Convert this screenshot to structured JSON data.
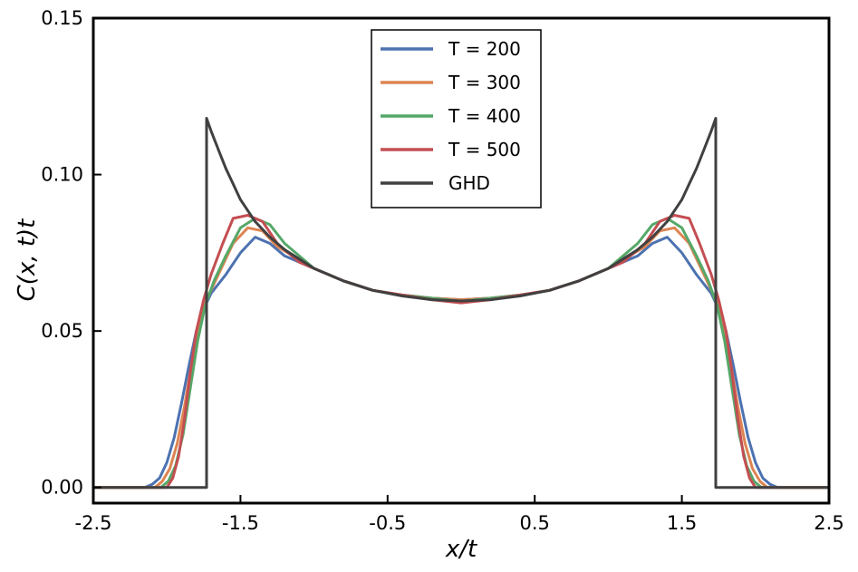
{
  "chart_data": {
    "type": "line",
    "title": "",
    "xlabel": "x/t",
    "ylabel": "C(x, t)t",
    "xlim": [
      -2.5,
      2.5
    ],
    "ylim": [
      -0.005,
      0.15
    ],
    "x_ticks": [
      -2.5,
      -1.5,
      -0.5,
      0.5,
      1.5,
      2.5
    ],
    "x_tick_labels": [
      "-2.5",
      "-1.5",
      "-0.5",
      "0.5",
      "1.5",
      "2.5"
    ],
    "y_ticks": [
      0.0,
      0.05,
      0.1,
      0.15
    ],
    "y_tick_labels": [
      "0.00",
      "0.05",
      "0.10",
      "0.15"
    ],
    "grid": false,
    "legend_position": "top-center",
    "series": [
      {
        "name": "T = 200",
        "color": "#4c72b0",
        "x": [
          -2.5,
          -2.15,
          -2.1,
          -2.05,
          -2.0,
          -1.95,
          -1.9,
          -1.85,
          -1.8,
          -1.75,
          -1.7,
          -1.6,
          -1.5,
          -1.4,
          -1.3,
          -1.2,
          -1.0,
          -0.8,
          -0.6,
          -0.4,
          -0.2,
          0.0,
          0.2,
          0.4,
          0.6,
          0.8,
          1.0,
          1.2,
          1.3,
          1.4,
          1.5,
          1.6,
          1.7,
          1.75,
          1.8,
          1.85,
          1.9,
          1.95,
          2.0,
          2.05,
          2.1,
          2.15,
          2.5
        ],
        "y": [
          0.0,
          0.0,
          0.001,
          0.003,
          0.008,
          0.016,
          0.027,
          0.039,
          0.05,
          0.057,
          0.062,
          0.068,
          0.075,
          0.08,
          0.078,
          0.074,
          0.07,
          0.066,
          0.063,
          0.0615,
          0.0605,
          0.06,
          0.0605,
          0.0615,
          0.063,
          0.066,
          0.07,
          0.074,
          0.078,
          0.08,
          0.075,
          0.068,
          0.062,
          0.057,
          0.05,
          0.039,
          0.027,
          0.016,
          0.008,
          0.003,
          0.001,
          0.0,
          0.0
        ]
      },
      {
        "name": "T = 300",
        "color": "#dd8452",
        "x": [
          -2.5,
          -2.08,
          -2.03,
          -1.98,
          -1.93,
          -1.88,
          -1.83,
          -1.78,
          -1.73,
          -1.65,
          -1.55,
          -1.45,
          -1.35,
          -1.25,
          -1.0,
          -0.8,
          -0.6,
          -0.4,
          -0.2,
          0.0,
          0.2,
          0.4,
          0.6,
          0.8,
          1.0,
          1.25,
          1.35,
          1.45,
          1.55,
          1.65,
          1.73,
          1.78,
          1.83,
          1.88,
          1.93,
          1.98,
          2.03,
          2.08,
          2.5
        ],
        "y": [
          0.0,
          0.0,
          0.002,
          0.006,
          0.014,
          0.026,
          0.04,
          0.052,
          0.06,
          0.068,
          0.078,
          0.083,
          0.082,
          0.077,
          0.07,
          0.066,
          0.063,
          0.0615,
          0.0605,
          0.06,
          0.0605,
          0.0615,
          0.063,
          0.066,
          0.07,
          0.077,
          0.082,
          0.083,
          0.078,
          0.068,
          0.06,
          0.052,
          0.04,
          0.026,
          0.014,
          0.006,
          0.002,
          0.0,
          0.0
        ]
      },
      {
        "name": "T = 400",
        "color": "#55a868",
        "x": [
          -2.5,
          -2.04,
          -1.99,
          -1.94,
          -1.89,
          -1.84,
          -1.79,
          -1.74,
          -1.68,
          -1.6,
          -1.5,
          -1.4,
          -1.3,
          -1.2,
          -1.0,
          -0.8,
          -0.6,
          -0.4,
          -0.2,
          0.0,
          0.2,
          0.4,
          0.6,
          0.8,
          1.0,
          1.2,
          1.3,
          1.4,
          1.5,
          1.6,
          1.68,
          1.74,
          1.79,
          1.84,
          1.89,
          1.94,
          1.99,
          2.04,
          2.5
        ],
        "y": [
          0.0,
          0.0,
          0.002,
          0.007,
          0.017,
          0.032,
          0.047,
          0.058,
          0.066,
          0.074,
          0.083,
          0.086,
          0.084,
          0.078,
          0.07,
          0.066,
          0.063,
          0.0615,
          0.0605,
          0.0595,
          0.0605,
          0.0615,
          0.063,
          0.066,
          0.07,
          0.078,
          0.084,
          0.086,
          0.083,
          0.074,
          0.066,
          0.058,
          0.047,
          0.032,
          0.017,
          0.007,
          0.002,
          0.0,
          0.0
        ]
      },
      {
        "name": "T = 500",
        "color": "#c44e52",
        "x": [
          -2.5,
          -2.0,
          -1.96,
          -1.92,
          -1.88,
          -1.84,
          -1.8,
          -1.75,
          -1.7,
          -1.62,
          -1.55,
          -1.45,
          -1.35,
          -1.25,
          -1.1,
          -0.8,
          -0.6,
          -0.4,
          -0.2,
          0.0,
          0.2,
          0.4,
          0.6,
          0.8,
          1.1,
          1.25,
          1.35,
          1.45,
          1.55,
          1.62,
          1.7,
          1.75,
          1.8,
          1.84,
          1.88,
          1.92,
          1.96,
          2.0,
          2.5
        ],
        "y": [
          0.0,
          0.0,
          0.003,
          0.01,
          0.022,
          0.037,
          0.05,
          0.06,
          0.068,
          0.078,
          0.086,
          0.087,
          0.085,
          0.078,
          0.072,
          0.066,
          0.063,
          0.0615,
          0.06,
          0.059,
          0.06,
          0.0615,
          0.063,
          0.066,
          0.072,
          0.078,
          0.085,
          0.087,
          0.086,
          0.078,
          0.068,
          0.06,
          0.05,
          0.037,
          0.022,
          0.01,
          0.003,
          0.0,
          0.0
        ]
      },
      {
        "name": "GHD",
        "color": "#404040",
        "x": [
          -2.5,
          -1.73,
          -1.73,
          -1.7,
          -1.65,
          -1.6,
          -1.55,
          -1.5,
          -1.4,
          -1.3,
          -1.2,
          -1.1,
          -1.0,
          -0.8,
          -0.6,
          -0.4,
          -0.2,
          0.0,
          0.2,
          0.4,
          0.6,
          0.8,
          1.0,
          1.1,
          1.2,
          1.3,
          1.4,
          1.5,
          1.55,
          1.6,
          1.65,
          1.7,
          1.73,
          1.73,
          2.5
        ],
        "y": [
          0.0,
          0.0,
          0.118,
          0.114,
          0.108,
          0.102,
          0.097,
          0.092,
          0.085,
          0.08,
          0.076,
          0.073,
          0.07,
          0.066,
          0.063,
          0.0612,
          0.06,
          0.0596,
          0.06,
          0.0612,
          0.063,
          0.066,
          0.07,
          0.073,
          0.076,
          0.08,
          0.085,
          0.092,
          0.097,
          0.102,
          0.108,
          0.114,
          0.118,
          0.0,
          0.0
        ]
      }
    ]
  }
}
